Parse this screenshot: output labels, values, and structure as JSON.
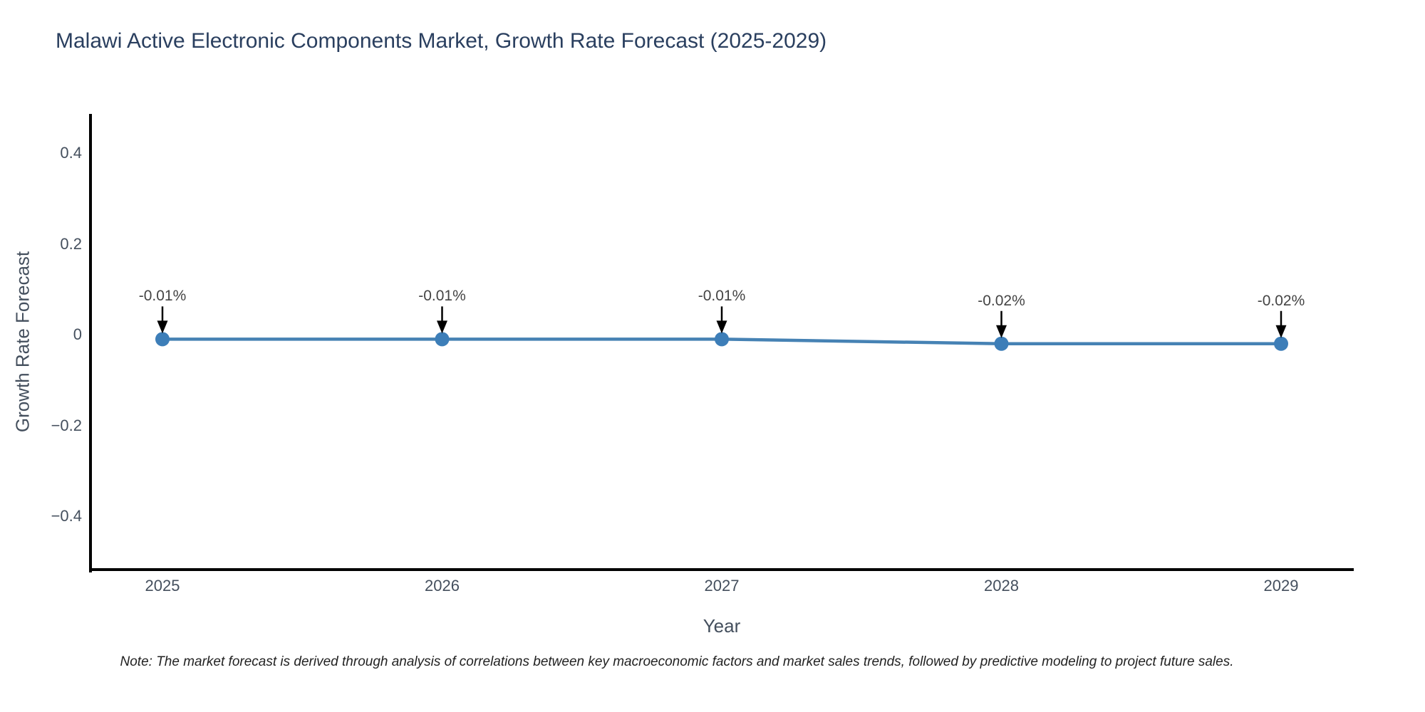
{
  "title": "Malawi Active Electronic Components Market, Growth Rate Forecast (2025-2029)",
  "note": "Note: The market forecast is derived through analysis of correlations between key macroeconomic factors and market sales trends, followed by predictive modeling to project future sales.",
  "chart_data": {
    "type": "line",
    "title": "Malawi Active Electronic Components Market, Growth Rate Forecast (2025-2029)",
    "x": [
      2025,
      2026,
      2027,
      2028,
      2029
    ],
    "xtick_labels": [
      "2025",
      "2026",
      "2027",
      "2028",
      "2029"
    ],
    "series": [
      {
        "name": "Growth Rate Forecast",
        "values": [
          -0.01,
          -0.01,
          -0.01,
          -0.02,
          -0.02
        ]
      }
    ],
    "point_labels": [
      "-0.01%",
      "-0.01%",
      "-0.01%",
      "-0.02%",
      "-0.02%"
    ],
    "xlabel": "Year",
    "ylabel": "Growth Rate Forecast",
    "ylim": [
      -0.52,
      0.49
    ],
    "ytick_values": [
      0.4,
      0.2,
      0,
      -0.2,
      -0.4
    ],
    "ytick_labels": [
      "0.4",
      "0.2",
      "0",
      "−0.2",
      "−0.4"
    ],
    "grid": false,
    "legend": "none",
    "colors": {
      "line": "#4682b4",
      "marker": "#3d7eb8",
      "annotation_text": "#444444",
      "annotation_arrow": "#000000",
      "axis_line": "#000000",
      "title_text": "#2a3f5f",
      "tick_text": "#444f5d",
      "background": "#ffffff"
    }
  }
}
